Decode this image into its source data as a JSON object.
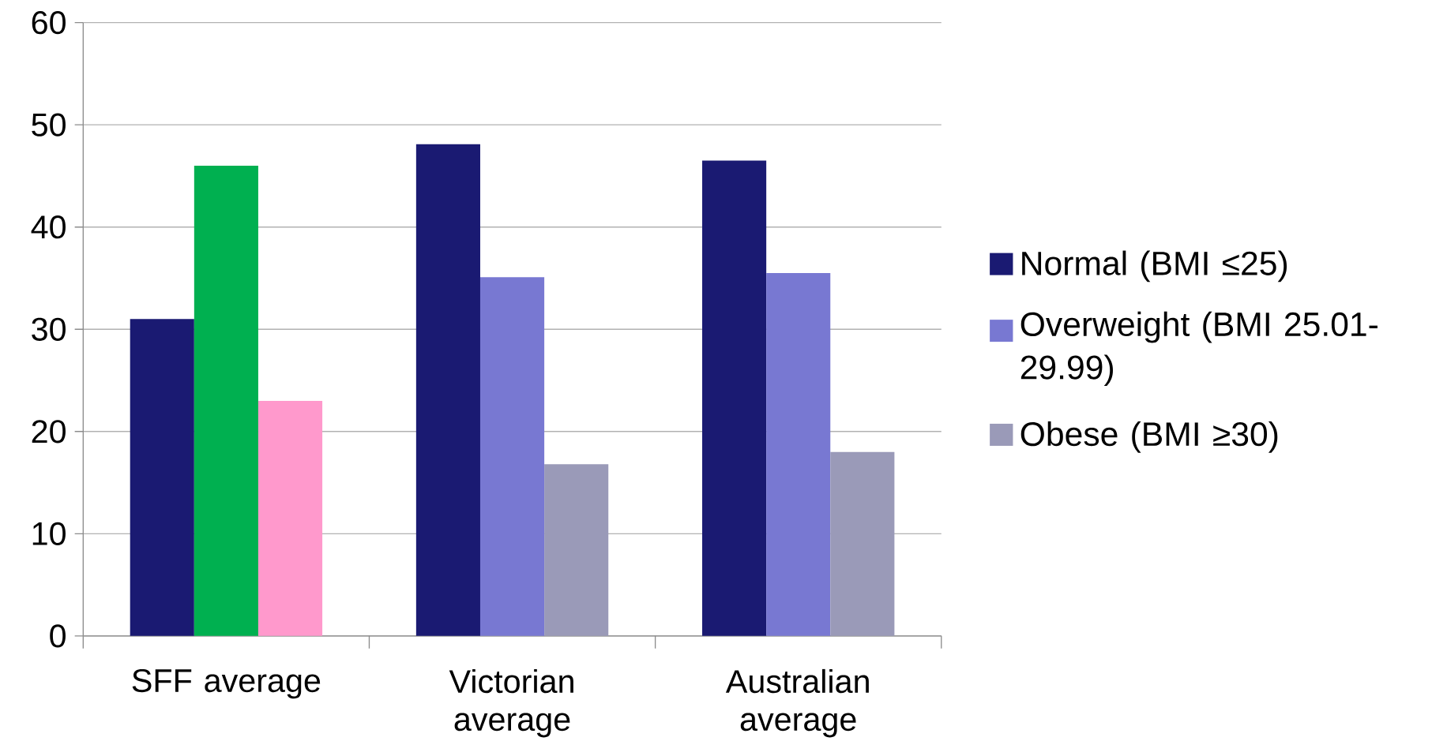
{
  "chart_data": {
    "type": "bar",
    "categories": [
      "SFF average",
      "Victorian average",
      "Australian average"
    ],
    "series": [
      {
        "name": "Normal (BMI ≤25)",
        "color": "#1a1a72",
        "colors": [
          "#1a1a72",
          "#1a1a72",
          "#1a1a72"
        ],
        "values": [
          31,
          48.1,
          46.5
        ]
      },
      {
        "name": "Overweight (BMI 25.01-29.99)",
        "color": "#7878d2",
        "colors": [
          "#00b050",
          "#7878d2",
          "#7878d2"
        ],
        "values": [
          46,
          35.1,
          35.5
        ]
      },
      {
        "name": "Obese (BMI ≥30)",
        "color": "#9a9ab8",
        "colors": [
          "#ff99cc",
          "#9a9ab8",
          "#9a9ab8"
        ],
        "values": [
          23,
          16.8,
          18
        ]
      }
    ],
    "ylim": [
      0,
      60
    ],
    "yticks": [
      0,
      10,
      20,
      30,
      40,
      50,
      60
    ],
    "grid": "y",
    "legend": "right"
  }
}
